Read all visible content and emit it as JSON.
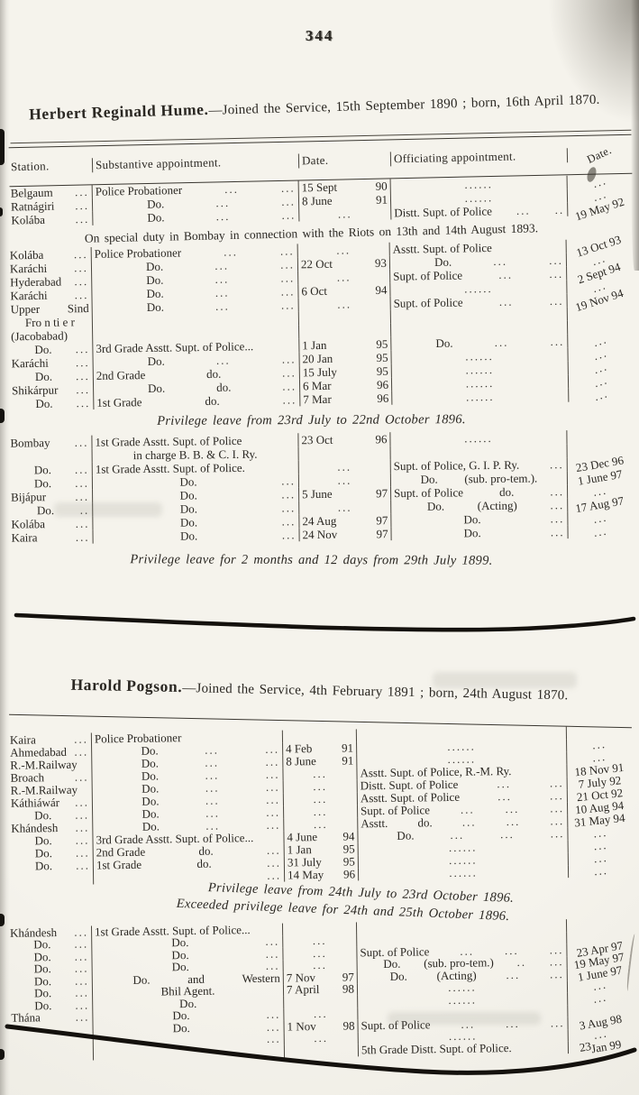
{
  "page": {
    "number": "344"
  },
  "hume": {
    "name": "Herbert Reginald Hume.",
    "heading_rest": "—Joined the Service, 15th September 1890 ; born, 16th April 1870.",
    "headers": [
      "Station.",
      "Substantive appointment.",
      "Date.",
      "Officiating appointment.",
      "Date."
    ],
    "s1": [
      [
        [
          "Belgaum",
          "..."
        ],
        [
          "Police Probationer",
          "...",
          "..."
        ],
        [
          "15 Sept",
          "90"
        ],
        [
          "",
          "......",
          ""
        ],
        [
          "",
          "...",
          ""
        ]
      ],
      [
        [
          "Ratnágiri",
          "..."
        ],
        [
          "",
          "Do.",
          "...",
          "..."
        ],
        [
          "8 June",
          "91"
        ],
        [
          "",
          "......",
          ""
        ],
        [
          "",
          "...",
          ""
        ]
      ],
      [
        [
          "Kolába",
          "..."
        ],
        [
          "",
          "Do.",
          "...",
          "..."
        ],
        [
          "",
          "...",
          ""
        ],
        [
          "Distt. Supt. of Police",
          "...",
          ".."
        ],
        [
          "",
          "19 May 92",
          ""
        ]
      ]
    ],
    "note_special": "On special duty in Bombay in connection with the Riots on 13th and 14th August 1893.",
    "s2": [
      [
        [
          "Kolába",
          "..."
        ],
        [
          "Police Probationer",
          "...",
          "..."
        ],
        [
          "",
          "...",
          ""
        ],
        [
          "Asstt. Supt. of Police",
          "",
          ""
        ],
        [
          "",
          "13 Oct 93",
          ""
        ]
      ],
      [
        [
          "Karáchi",
          "..."
        ],
        [
          "",
          "Do.",
          "...",
          "..."
        ],
        [
          "22 Oct",
          "93"
        ],
        [
          "",
          "Do.",
          "...",
          "..."
        ],
        [
          "",
          "...",
          ""
        ]
      ],
      [
        [
          "Hyderabad",
          "..."
        ],
        [
          "",
          "Do.",
          "...",
          "..."
        ],
        [
          "",
          "...",
          ""
        ],
        [
          "Supt. of Police",
          "...",
          "..."
        ],
        [
          "",
          "2 Sept 94",
          ""
        ]
      ],
      [
        [
          "Karáchi",
          "..."
        ],
        [
          "",
          "Do.",
          "...",
          "..."
        ],
        [
          "6 Oct",
          "94"
        ],
        [
          "",
          "......",
          ""
        ],
        [
          "",
          "...",
          ""
        ]
      ],
      [
        [
          "Upper",
          "Sind"
        ],
        [
          "",
          "Do.",
          "...",
          "..."
        ],
        [
          "",
          "...",
          ""
        ],
        [
          "Supt. of Police",
          "...",
          "..."
        ],
        [
          "",
          "19 Nov 94",
          ""
        ]
      ],
      [
        [
          "",
          "Fro n ti e r",
          ""
        ],
        [],
        [],
        [],
        []
      ],
      [
        [
          "(Jacobabad)",
          ""
        ],
        [],
        [],
        [],
        []
      ],
      [
        [
          "",
          "Do.",
          "..."
        ],
        [
          "3rd Grade Asstt. Supt. of Police..."
        ],
        [
          "1 Jan",
          "95"
        ],
        [
          "",
          "Do.",
          "...",
          "..."
        ],
        [
          "",
          "...",
          ""
        ]
      ],
      [
        [
          "Karáchi",
          "..."
        ],
        [
          "",
          "Do.",
          "...",
          "..."
        ],
        [
          "20 Jan",
          "95"
        ],
        [
          "",
          "......",
          ""
        ],
        [
          "",
          "...",
          ""
        ]
      ],
      [
        [
          "",
          "Do.",
          "..."
        ],
        [
          "2nd Grade",
          "do.",
          "..."
        ],
        [
          "15 July",
          "95"
        ],
        [
          "",
          "......",
          ""
        ],
        [
          "",
          "...",
          ""
        ]
      ],
      [
        [
          "Shikárpur",
          "..."
        ],
        [
          "",
          "Do.",
          "do.",
          "..."
        ],
        [
          "6 Mar",
          "96"
        ],
        [
          "",
          "......",
          ""
        ],
        [
          "",
          "...",
          ""
        ]
      ],
      [
        [
          "",
          "Do.",
          "..."
        ],
        [
          "1st Grade",
          "do.",
          "..."
        ],
        [
          "7 Mar",
          "96"
        ],
        [
          "",
          "......",
          ""
        ],
        [
          "",
          "...",
          ""
        ]
      ]
    ],
    "note_leave1": "Privilege leave from 23rd July to 22nd October 1896.",
    "s3": [
      [
        [
          "Bombay",
          "..."
        ],
        [
          "1st Grade Asstt. Supt. of Police"
        ],
        [
          "23 Oct",
          "96"
        ],
        [
          "",
          "......",
          ""
        ],
        []
      ],
      [
        [],
        [
          "",
          "in charge B. B. & C. I. Ry.",
          ""
        ],
        [],
        [],
        []
      ],
      [
        [
          "",
          "Do.",
          "..."
        ],
        [
          "1st Grade Asstt. Supt. of Police."
        ],
        [
          "",
          "...",
          ""
        ],
        [
          "Supt. of Police, G. I. P. Ry.",
          "..."
        ],
        [
          "",
          "23 Dec 96",
          ""
        ]
      ],
      [
        [
          "",
          "Do.",
          "..."
        ],
        [
          "",
          "Do.",
          "..."
        ],
        [
          "",
          "...",
          ""
        ],
        [
          "",
          "Do.",
          "(sub. pro-tem.).",
          ""
        ],
        [
          "",
          "1 June 97",
          ""
        ]
      ],
      [
        [
          "Bijápur",
          "..."
        ],
        [
          "",
          "Do.",
          "..."
        ],
        [
          "5 June",
          "97"
        ],
        [
          "Supt. of Police",
          "do.",
          "..."
        ],
        [
          "",
          "...",
          ""
        ]
      ],
      [
        [
          "",
          "Do.",
          ".."
        ],
        [
          "",
          "Do.",
          "..."
        ],
        [
          "",
          "...",
          ""
        ],
        [
          "",
          "Do.",
          "(Acting)",
          "..."
        ],
        [
          "",
          "17 Aug 97",
          ""
        ]
      ],
      [
        [
          "Kolába",
          "..."
        ],
        [
          "",
          "Do.",
          "..."
        ],
        [
          "24 Aug",
          "97"
        ],
        [
          "",
          "Do.",
          "..."
        ],
        [
          "",
          "...",
          ""
        ]
      ],
      [
        [
          "Kaira",
          "..."
        ],
        [
          "",
          "Do.",
          "..."
        ],
        [
          "24 Nov",
          "97"
        ],
        [
          "",
          "Do.",
          "..."
        ],
        [
          "",
          "...",
          ""
        ]
      ]
    ],
    "note_leave2": "Privilege leave for 2 months and 12 days from 29th July 1899."
  },
  "pogson": {
    "name": "Harold Pogson.",
    "heading_rest": "—Joined the Service, 4th February 1891 ; born, 24th August 1870.",
    "s1": [
      [
        [
          "Kaira",
          "..."
        ],
        [
          "Police Probationer",
          "",
          ""
        ],
        [],
        [],
        []
      ],
      [
        [
          "Ahmedabad",
          "..."
        ],
        [
          "",
          "Do.",
          "...",
          "..."
        ],
        [
          "4 Feb",
          "91"
        ],
        [
          "",
          "......",
          ""
        ],
        [
          "",
          "...",
          ""
        ]
      ],
      [
        [
          "R.-M.Railway",
          ""
        ],
        [
          "",
          "Do.",
          "...",
          "..."
        ],
        [
          "8 June",
          "91"
        ],
        [
          "",
          "......",
          ""
        ],
        [
          "",
          "...",
          ""
        ]
      ],
      [
        [
          "Broach",
          "..."
        ],
        [
          "",
          "Do.",
          "...",
          "..."
        ],
        [
          "",
          "...",
          ""
        ],
        [
          "Asstt. Supt. of Police, R.-M. Ry."
        ],
        [
          "",
          "18 Nov 91",
          ""
        ]
      ],
      [
        [
          "R.-M.Railway",
          ""
        ],
        [
          "",
          "Do.",
          "...",
          "..."
        ],
        [
          "",
          "...",
          ""
        ],
        [
          "Distt. Supt. of Police",
          "...",
          "..."
        ],
        [
          "",
          "7 July 92",
          ""
        ]
      ],
      [
        [
          "Káthiáwár",
          "..."
        ],
        [
          "",
          "Do.",
          "...",
          "..."
        ],
        [
          "",
          "...",
          ""
        ],
        [
          "Asstt. Supt. of Police",
          "...",
          "..."
        ],
        [
          "",
          "21 Oct 92",
          ""
        ]
      ],
      [
        [
          "",
          "Do.",
          "..."
        ],
        [
          "",
          "Do.",
          "...",
          "..."
        ],
        [
          "",
          "...",
          ""
        ],
        [
          "Supt. of Police",
          "...",
          "...",
          "..."
        ],
        [
          "",
          "10 Aug 94",
          ""
        ]
      ],
      [
        [
          "Khándesh",
          "..."
        ],
        [
          "",
          "Do.",
          "...",
          "..."
        ],
        [
          "",
          "...",
          ""
        ],
        [
          "Asstt.",
          "do.",
          "...",
          "...",
          "..."
        ],
        [
          "",
          "31 May 94",
          ""
        ]
      ],
      [
        [
          "",
          "Do.",
          "..."
        ],
        [
          "3rd Grade Asstt. Supt. of Police..."
        ],
        [
          "4 June",
          "94"
        ],
        [
          "",
          "Do.",
          "...",
          "...",
          "..."
        ],
        [
          "",
          "...",
          ""
        ]
      ],
      [
        [
          "",
          "Do.",
          "..."
        ],
        [
          "2nd Grade",
          "do.",
          "..."
        ],
        [
          "1 Jan",
          "95"
        ],
        [
          "",
          "......",
          ""
        ],
        [
          "",
          "...",
          ""
        ]
      ],
      [
        [
          "",
          "Do.",
          "..."
        ],
        [
          "1st Grade",
          "do.",
          "..."
        ],
        [
          "31 July",
          "95"
        ],
        [
          "",
          "......",
          ""
        ],
        [
          "",
          "...",
          ""
        ]
      ],
      [
        [],
        [
          "",
          "",
          "..."
        ],
        [
          "14 May",
          "96"
        ],
        [
          "",
          "......",
          ""
        ],
        [
          "",
          "...",
          ""
        ]
      ]
    ],
    "note_leave": "Privilege leave from 24th July to 23rd October 1896.",
    "note_exceeded": "Exceeded privilege leave for 24th and 25th October 1896.",
    "s2": [
      [
        [
          "Khándesh",
          "..."
        ],
        [
          "1st Grade Asstt. Supt. of Police..."
        ],
        [],
        [],
        []
      ],
      [
        [
          "",
          "Do.",
          "..."
        ],
        [
          "",
          "Do.",
          "..."
        ],
        [
          "",
          "...",
          ""
        ],
        [],
        []
      ],
      [
        [
          "",
          "Do.",
          "..."
        ],
        [
          "",
          "Do.",
          "..."
        ],
        [
          "",
          "...",
          ""
        ],
        [
          "Supt. of Police",
          "...",
          "...",
          "..."
        ],
        [
          "",
          "23 Apr 97",
          ""
        ]
      ],
      [
        [
          "",
          "Do.",
          "..."
        ],
        [
          "",
          "Do.",
          "..."
        ],
        [
          "",
          "...",
          ""
        ],
        [
          "",
          "Do.",
          "(sub. pro-tem.)",
          "..",
          "..."
        ],
        [
          "",
          "19 May 97",
          ""
        ]
      ],
      [
        [
          "",
          "Do.",
          "..."
        ],
        [
          "",
          "Do.",
          "and",
          "Western"
        ],
        [
          "7 Nov",
          "97"
        ],
        [
          "",
          "Do.",
          "(Acting)",
          "...",
          "..."
        ],
        [
          "",
          "1 June 97",
          ""
        ]
      ],
      [
        [
          "",
          "Do.",
          "..."
        ],
        [
          "",
          "Bhil Agent.",
          ""
        ],
        [
          "7 April",
          "98"
        ],
        [
          "",
          "......",
          ""
        ],
        [
          "",
          "...",
          ""
        ]
      ],
      [
        [
          "",
          "Do.",
          "..."
        ],
        [
          "",
          "Do.",
          ""
        ],
        [],
        [
          "",
          "......",
          ""
        ],
        [
          "",
          "...",
          ""
        ]
      ],
      [
        [
          "Thána",
          "..."
        ],
        [
          "",
          "Do.",
          "..."
        ],
        [
          "",
          "...",
          ""
        ],
        [],
        []
      ],
      [
        [],
        [
          "",
          "Do.",
          "..."
        ],
        [
          "1 Nov",
          "98"
        ],
        [
          "Supt. of Police",
          "...",
          "...",
          "..."
        ],
        [
          "",
          "3 Aug 98",
          ""
        ]
      ],
      [
        [],
        [
          "",
          "",
          "..."
        ],
        [
          "",
          "...",
          ""
        ],
        [
          "",
          "......",
          ""
        ],
        [
          "",
          "...",
          ""
        ]
      ],
      [
        [],
        [],
        [],
        [
          "5th Grade Distt. Supt. of Police."
        ],
        [
          "23",
          "Jan 99"
        ]
      ]
    ]
  }
}
